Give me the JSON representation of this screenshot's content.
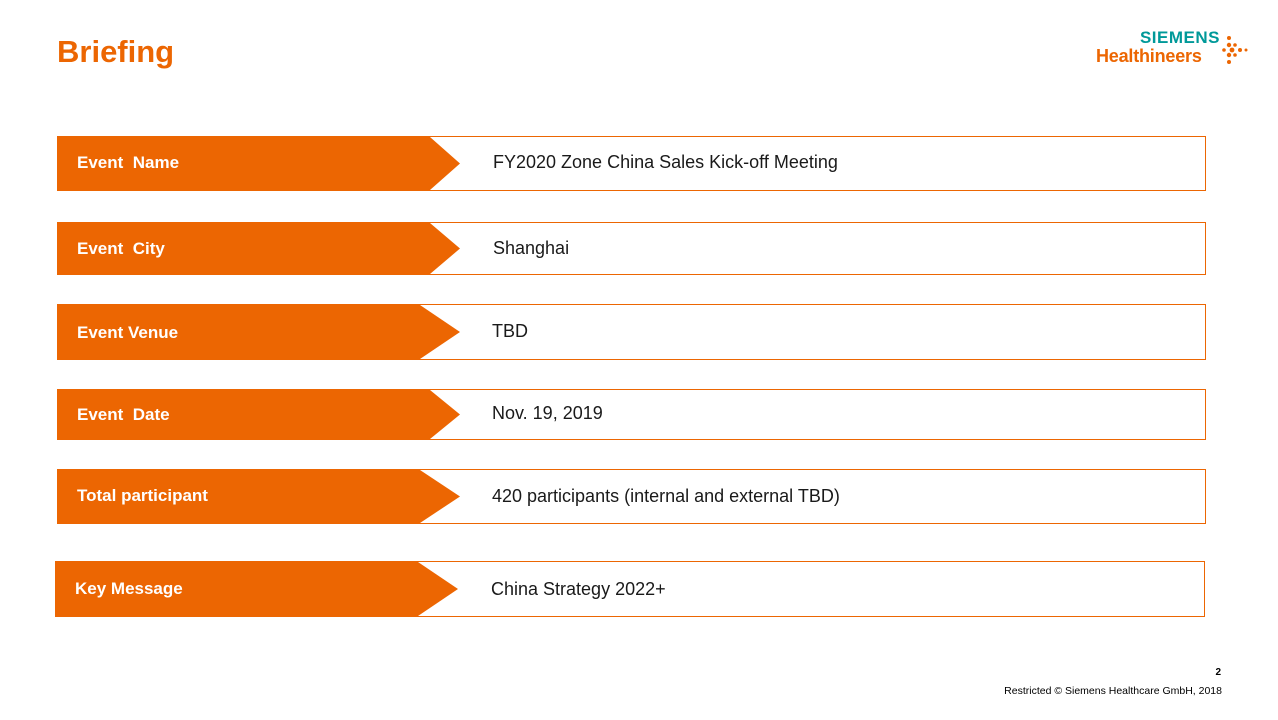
{
  "slide": {
    "title": "Briefing",
    "page_number": "2",
    "footer": "Restricted © Siemens Healthcare GmbH, 2018"
  },
  "logo": {
    "line1": "SIEMENS",
    "line2": "Healthineers",
    "brand_teal": "#009999",
    "brand_orange": "#EC6602"
  },
  "colors": {
    "accent": "#EC6602"
  },
  "briefing": [
    {
      "label": "Event  Name",
      "value": "FY2020 Zone China Sales Kick-off Meeting"
    },
    {
      "label": "Event  City",
      "value": "Shanghai"
    },
    {
      "label": "Event Venue",
      "value": "TBD"
    },
    {
      "label": "Event  Date",
      "value": "Nov. 19, 2019"
    },
    {
      "label": "Total participant",
      "value": "420 participants (internal and external TBD)"
    },
    {
      "label": "Key Message",
      "value": "China Strategy 2022+"
    }
  ]
}
